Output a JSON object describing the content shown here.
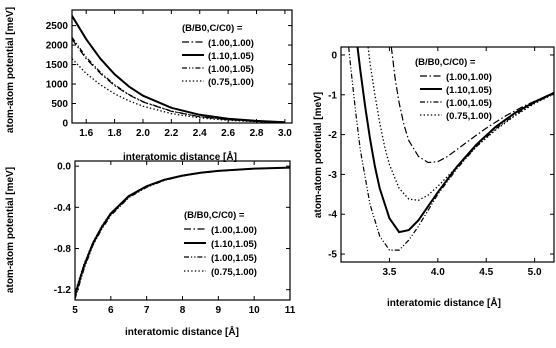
{
  "chart_data": [
    {
      "type": "line",
      "id": "tl",
      "xlabel": "interatomic distance [Å]",
      "ylabel": "atom-atom potential [meV]",
      "xlim": [
        1.5,
        3.05
      ],
      "ylim": [
        0,
        2900
      ],
      "xticks": [
        1.6,
        1.8,
        2.0,
        2.2,
        2.4,
        2.6,
        2.8,
        3.0
      ],
      "xtick_labels": [
        "1.6",
        "1.8",
        "2.0",
        "2.2",
        "2.4",
        "2.6",
        "2.8",
        "3.0"
      ],
      "yticks": [
        0,
        500,
        1000,
        1500,
        2000,
        2500
      ],
      "ytick_labels": [
        "0",
        "500",
        "1000",
        "1500",
        "2000",
        "2500"
      ],
      "grid": false,
      "legend_title": "(B/B0,C/C0) =",
      "legend_position": "top-right",
      "series": [
        {
          "name": "(1.00,1.00)",
          "style": "dashdot",
          "x": [
            1.5,
            1.6,
            1.7,
            1.8,
            1.9,
            2.0,
            2.2,
            2.4,
            2.6,
            2.8,
            3.0
          ],
          "y": [
            2150,
            1650,
            1270,
            960,
            720,
            540,
            300,
            160,
            85,
            40,
            15
          ]
        },
        {
          "name": "(1.10,1.05)",
          "style": "solid",
          "x": [
            1.5,
            1.6,
            1.7,
            1.8,
            1.9,
            2.0,
            2.2,
            2.4,
            2.6,
            2.8,
            3.0
          ],
          "y": [
            2750,
            2150,
            1650,
            1250,
            940,
            700,
            390,
            210,
            110,
            55,
            20
          ]
        },
        {
          "name": "(1.00,1.05)",
          "style": "dashdotdot",
          "x": [
            1.5,
            1.6,
            1.7,
            1.8,
            1.9,
            2.0,
            2.2,
            2.4,
            2.6,
            2.8,
            3.0
          ],
          "y": [
            2200,
            1690,
            1300,
            980,
            735,
            550,
            305,
            165,
            88,
            42,
            16
          ]
        },
        {
          "name": "(0.75,1.00)",
          "style": "dotted",
          "x": [
            1.5,
            1.6,
            1.7,
            1.8,
            1.9,
            2.0,
            2.2,
            2.4,
            2.6,
            2.8,
            3.0
          ],
          "y": [
            1650,
            1270,
            980,
            750,
            570,
            430,
            240,
            130,
            70,
            33,
            12
          ]
        }
      ]
    },
    {
      "type": "line",
      "id": "bl",
      "xlabel": "interatomic distance [Å]",
      "ylabel": "atom-atom potential [meV]",
      "xlim": [
        5,
        11
      ],
      "ylim": [
        -1.3,
        0.05
      ],
      "xticks": [
        5,
        6,
        7,
        8,
        9,
        10,
        11
      ],
      "xtick_labels": [
        "5",
        "6",
        "7",
        "8",
        "9",
        "10",
        "11"
      ],
      "yticks": [
        0.0,
        -0.4,
        -0.8,
        -1.2
      ],
      "ytick_labels": [
        "0.0",
        "-0.4",
        "-0.8",
        "-1.2"
      ],
      "grid": false,
      "legend_title": "(B/B0,C/C0) =",
      "legend_position": "right",
      "series": [
        {
          "name": "(1.00,1.00)",
          "style": "dashdot",
          "x": [
            5.0,
            5.25,
            5.5,
            5.75,
            6.0,
            6.5,
            7.0,
            7.5,
            8.0,
            8.5,
            9.0,
            10.0,
            11.0
          ],
          "y": [
            -1.27,
            -0.98,
            -0.76,
            -0.6,
            -0.47,
            -0.3,
            -0.2,
            -0.135,
            -0.094,
            -0.066,
            -0.047,
            -0.025,
            -0.014
          ]
        },
        {
          "name": "(1.10,1.05)",
          "style": "solid",
          "x": [
            5.0,
            5.25,
            5.5,
            5.75,
            6.0,
            6.5,
            7.0,
            7.5,
            8.0,
            8.5,
            9.0,
            10.0,
            11.0
          ],
          "y": [
            -1.25,
            -0.97,
            -0.75,
            -0.59,
            -0.46,
            -0.29,
            -0.195,
            -0.132,
            -0.092,
            -0.065,
            -0.046,
            -0.024,
            -0.014
          ]
        },
        {
          "name": "(1.00,1.05)",
          "style": "dashdotdot",
          "x": [
            5.0,
            5.25,
            5.5,
            5.75,
            6.0,
            6.5,
            7.0,
            7.5,
            8.0,
            8.5,
            9.0,
            10.0,
            11.0
          ],
          "y": [
            -1.29,
            -1.0,
            -0.77,
            -0.61,
            -0.48,
            -0.305,
            -0.205,
            -0.138,
            -0.096,
            -0.068,
            -0.048,
            -0.026,
            -0.015
          ]
        },
        {
          "name": "(0.75,1.00)",
          "style": "dotted",
          "x": [
            5.0,
            5.25,
            5.5,
            5.75,
            6.0,
            6.5,
            7.0,
            7.5,
            8.0,
            8.5,
            9.0,
            10.0,
            11.0
          ],
          "y": [
            -1.23,
            -0.95,
            -0.74,
            -0.58,
            -0.455,
            -0.29,
            -0.195,
            -0.13,
            -0.09,
            -0.064,
            -0.045,
            -0.024,
            -0.013
          ]
        }
      ]
    },
    {
      "type": "line",
      "id": "r",
      "xlabel": "interatomic distance [Å]",
      "ylabel": "atom-atom potential [meV]",
      "xlim": [
        3.0,
        5.2
      ],
      "ylim": [
        -5.2,
        0.2
      ],
      "xticks": [
        3.5,
        4.0,
        4.5,
        5.0
      ],
      "xtick_labels": [
        "3.5",
        "4.0",
        "4.5",
        "5.0"
      ],
      "yticks": [
        0,
        -1,
        -2,
        -3,
        -4,
        -5
      ],
      "ytick_labels": [
        "0",
        "-1",
        "-2",
        "-3",
        "-4",
        "-5"
      ],
      "grid": false,
      "legend_title": "(B/B0,C/C0) =",
      "legend_position": "top-right",
      "series": [
        {
          "name": "(1.00,1.00)",
          "style": "dashdot",
          "x": [
            3.52,
            3.56,
            3.6,
            3.65,
            3.7,
            3.8,
            3.9,
            4.0,
            4.1,
            4.2,
            4.35,
            4.5,
            4.7,
            4.9,
            5.2
          ],
          "y": [
            0.2,
            -0.6,
            -1.2,
            -1.75,
            -2.15,
            -2.55,
            -2.7,
            -2.68,
            -2.55,
            -2.37,
            -2.1,
            -1.84,
            -1.53,
            -1.27,
            -0.95
          ]
        },
        {
          "name": "(1.10,1.05)",
          "style": "solid",
          "x": [
            3.17,
            3.2,
            3.25,
            3.3,
            3.35,
            3.4,
            3.5,
            3.6,
            3.7,
            3.8,
            3.9,
            4.0,
            4.2,
            4.4,
            4.6,
            4.8,
            5.0,
            5.2
          ],
          "y": [
            0.2,
            -0.4,
            -1.3,
            -2.1,
            -2.8,
            -3.35,
            -4.1,
            -4.45,
            -4.4,
            -4.15,
            -3.8,
            -3.45,
            -2.8,
            -2.25,
            -1.8,
            -1.45,
            -1.18,
            -0.95
          ]
        },
        {
          "name": "(1.00,1.05)",
          "style": "dashdotdot",
          "x": [
            3.08,
            3.1,
            3.15,
            3.2,
            3.3,
            3.4,
            3.5,
            3.6,
            3.7,
            3.8,
            4.0,
            4.2,
            4.4,
            4.6,
            4.8,
            5.0,
            5.2
          ],
          "y": [
            0.2,
            -0.3,
            -1.4,
            -2.4,
            -3.75,
            -4.55,
            -4.9,
            -4.9,
            -4.65,
            -4.3,
            -3.5,
            -2.85,
            -2.3,
            -1.85,
            -1.5,
            -1.2,
            -0.97
          ]
        },
        {
          "name": "(0.75,1.00)",
          "style": "dotted",
          "x": [
            3.28,
            3.3,
            3.35,
            3.4,
            3.45,
            3.5,
            3.6,
            3.7,
            3.8,
            3.9,
            4.0,
            4.2,
            4.4,
            4.6,
            4.8,
            5.0,
            5.2
          ],
          "y": [
            0.2,
            -0.2,
            -1.0,
            -1.7,
            -2.3,
            -2.75,
            -3.35,
            -3.62,
            -3.65,
            -3.52,
            -3.3,
            -2.8,
            -2.3,
            -1.88,
            -1.52,
            -1.22,
            -0.98
          ]
        }
      ]
    }
  ]
}
